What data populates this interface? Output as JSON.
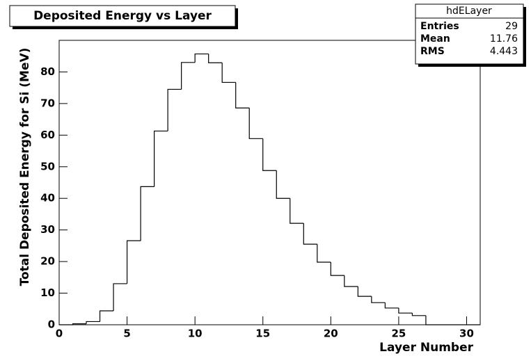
{
  "chart_data": {
    "type": "histogram",
    "title": "Deposited Energy vs Layer",
    "x_label": "Layer Number",
    "y_label": "Total Deposited Energy for Si (MeV)",
    "bins": [
      0,
      1,
      2,
      3,
      4,
      5,
      6,
      7,
      8,
      9,
      10,
      11,
      12,
      13,
      14,
      15,
      16,
      17,
      18,
      19,
      20,
      21,
      22,
      23,
      24,
      25,
      26,
      27,
      28,
      29,
      30,
      31
    ],
    "counts": [
      0,
      0.3,
      1,
      4.4,
      13,
      26.6,
      43.7,
      61.3,
      74.5,
      83,
      85.7,
      82.9,
      76.7,
      68.6,
      58.9,
      48.8,
      40,
      32.1,
      25.5,
      19.8,
      15.6,
      12.1,
      9,
      7,
      5.3,
      3.7,
      2.9,
      0,
      0,
      0,
      0
    ],
    "color": "#000000",
    "xlim": [
      0,
      31
    ],
    "xticks": [
      0,
      5,
      10,
      15,
      20,
      25,
      30
    ],
    "ylim": [
      0,
      90
    ],
    "yticks": [
      0,
      10,
      20,
      30,
      40,
      50,
      60,
      70,
      80
    ],
    "stats": {
      "title": "hdELayer",
      "rows": [
        [
          "Entries",
          "29"
        ],
        [
          "Mean",
          "11.76"
        ],
        [
          "RMS",
          "4.443"
        ]
      ]
    }
  }
}
